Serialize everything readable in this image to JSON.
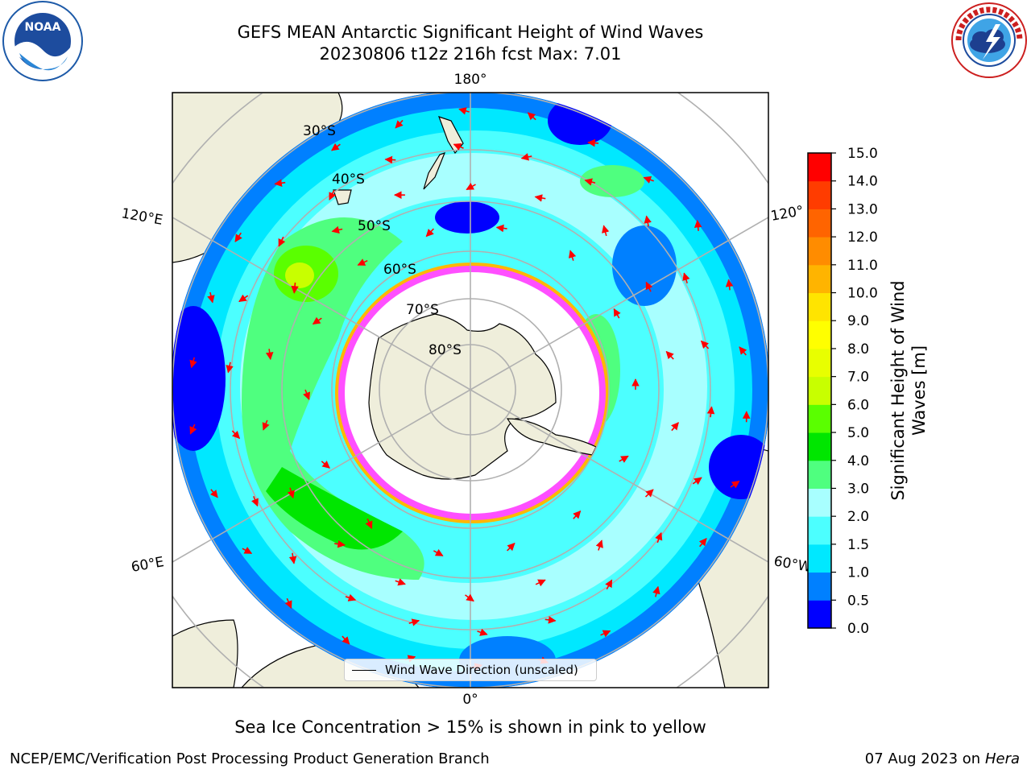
{
  "title": {
    "line1": "GEFS MEAN Antarctic Significant Height of Wind Waves",
    "line2": "20230806 t12z 216h fcst   Max: 7.01"
  },
  "logos": {
    "left": {
      "name": "noaa-logo",
      "text": "NOAA"
    },
    "right": {
      "name": "nws-logo",
      "text": "NATIONAL WEATHER SERVICE"
    }
  },
  "map": {
    "projection": "south-polar-stereographic",
    "longitude_labels": [
      "180°",
      "0°",
      "120°E",
      "60°E",
      "120°",
      "60°W"
    ],
    "latitude_labels": [
      "30°S",
      "40°S",
      "50°S",
      "60°S",
      "70°S",
      "80°S"
    ],
    "land_color": "#efeedb",
    "ice_colors": [
      "#ff4fff",
      "#ffb700"
    ],
    "vector_color": "#ff0000"
  },
  "legend": {
    "label": "Wind Wave Direction (unscaled)"
  },
  "colorbar": {
    "title_line1": "Significant Height of Wind",
    "title_line2": "Waves [m]",
    "ticks": [
      "0.0",
      "0.5",
      "1.0",
      "1.5",
      "2.0",
      "3.0",
      "4.0",
      "5.0",
      "6.0",
      "7.0",
      "8.0",
      "9.0",
      "10.0",
      "11.0",
      "12.0",
      "13.0",
      "14.0",
      "15.0"
    ],
    "colors": [
      "#0000ff",
      "#0080ff",
      "#00e8ff",
      "#4cffff",
      "#a8ffff",
      "#4fff7f",
      "#00e600",
      "#5aff00",
      "#c8ff00",
      "#e8ff00",
      "#ffff00",
      "#ffe400",
      "#ffb400",
      "#ff8c00",
      "#ff6400",
      "#ff3c00",
      "#ff0000"
    ]
  },
  "note": "Sea Ice Concentration > 15% is shown in pink to yellow",
  "footer": {
    "left": "NCEP/EMC/Verification Post Processing Product Generation Branch",
    "right_date": "07 Aug 2023 on",
    "right_system": "Hera"
  }
}
